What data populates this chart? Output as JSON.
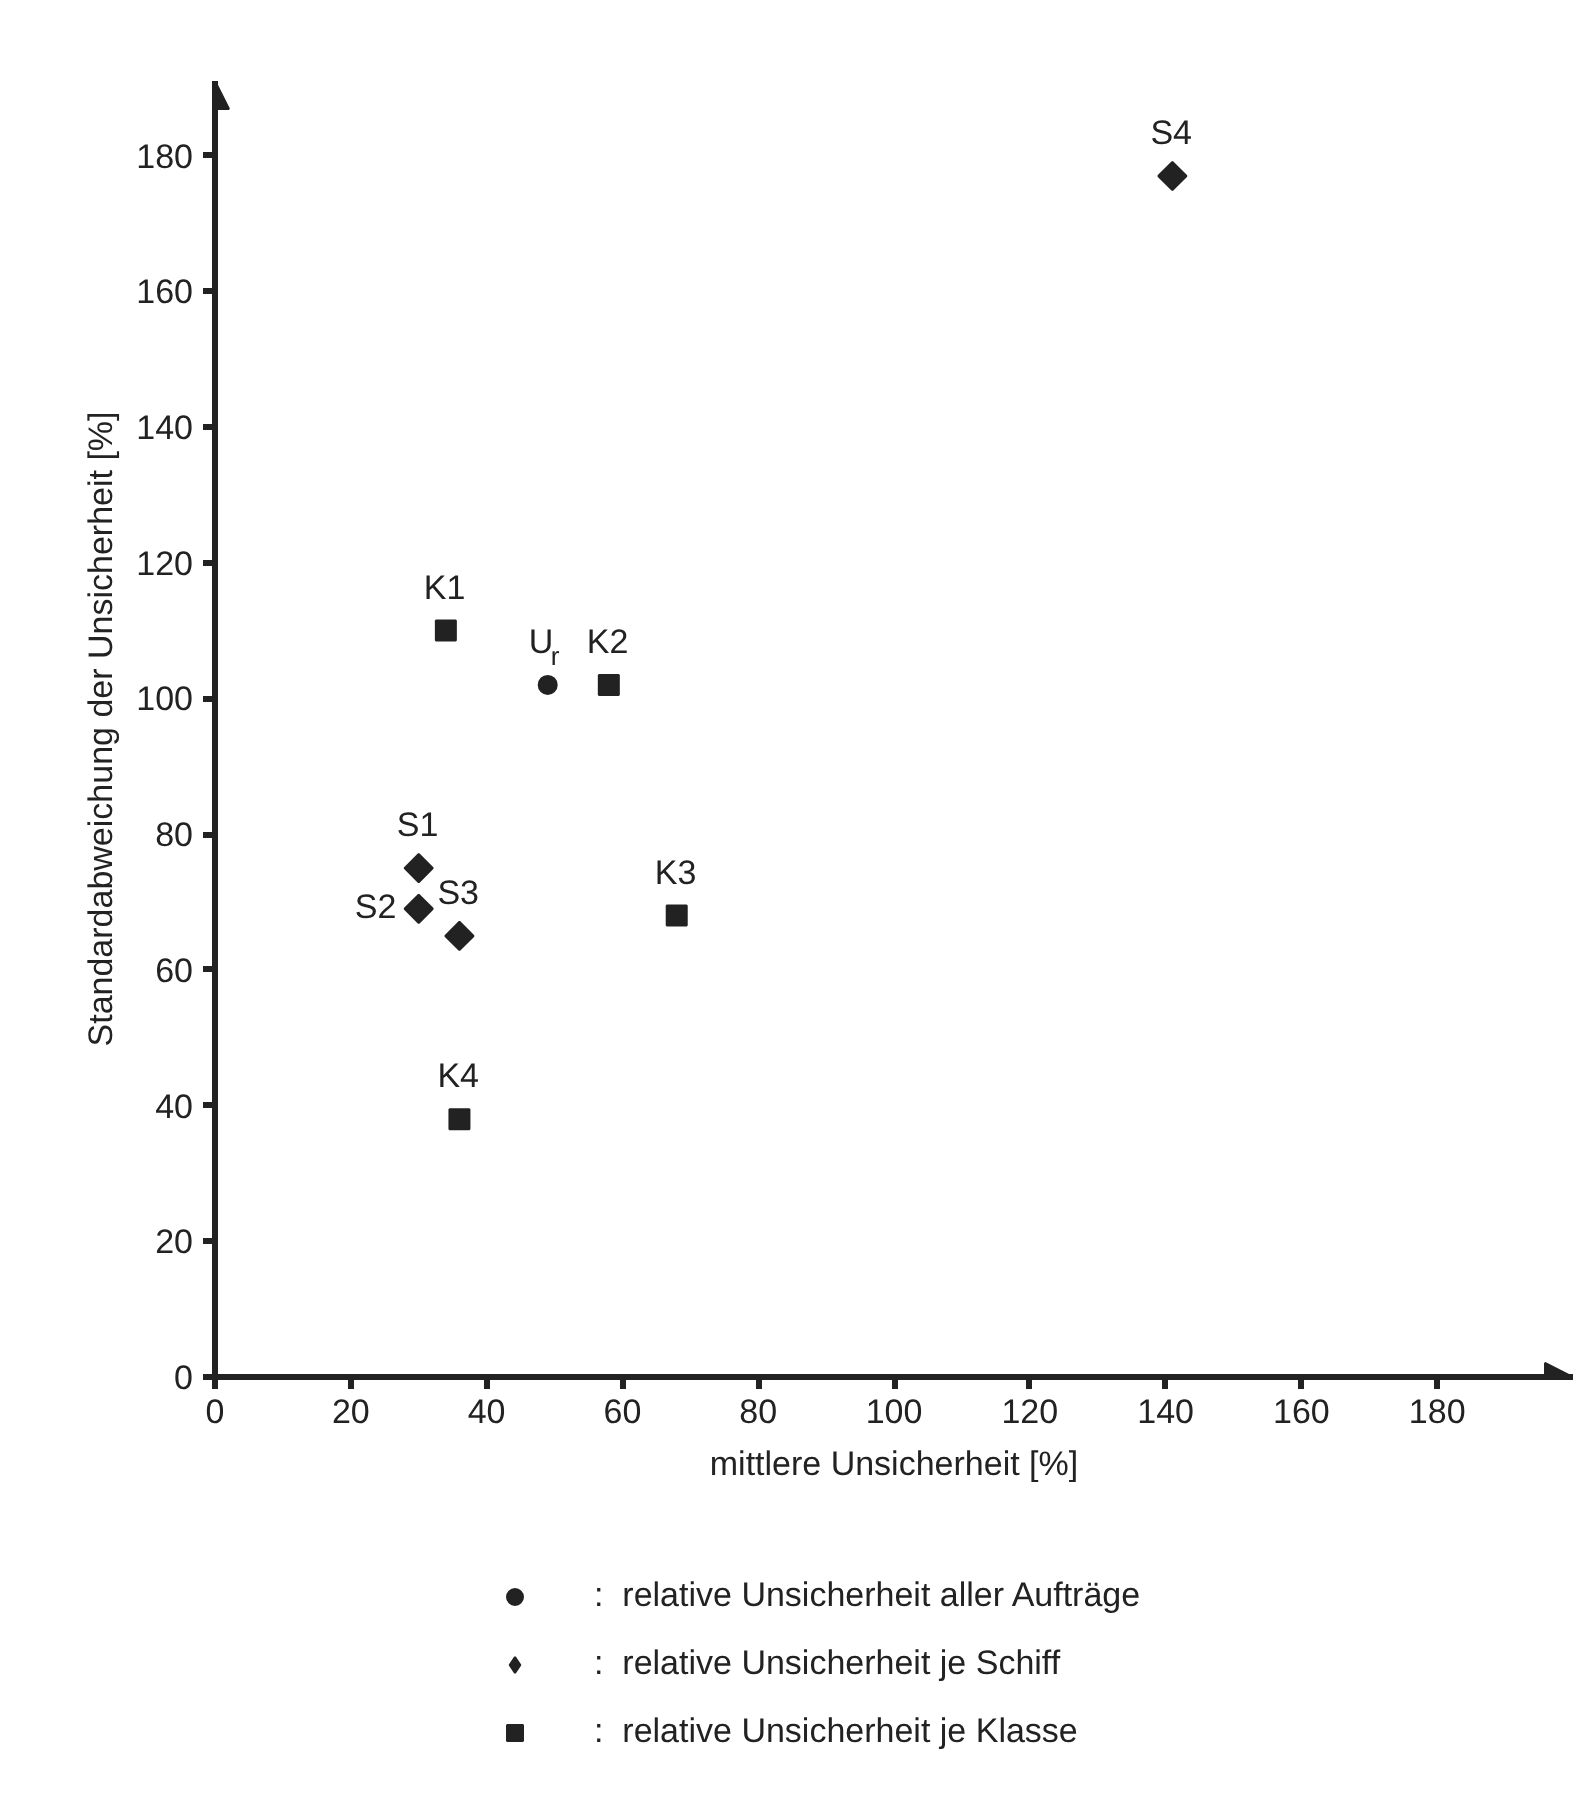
{
  "chart_data": {
    "type": "scatter",
    "xlabel": "mittlere Unsicherheit [%]",
    "ylabel": "Standardabweichung der Unsicherheit [%]",
    "xlim": [
      0,
      200
    ],
    "ylim": [
      0,
      191
    ],
    "xticks": [
      0,
      20,
      40,
      60,
      80,
      100,
      120,
      140,
      160,
      180
    ],
    "yticks": [
      0,
      20,
      40,
      60,
      80,
      100,
      120,
      140,
      160,
      180
    ],
    "grid": false,
    "legend": "bottom",
    "series": [
      {
        "name": ":  relative Unsicherheit aller Aufträge",
        "color": "#222222",
        "marker": "circle",
        "x": [
          49
        ],
        "values": [
          102
        ]
      },
      {
        "name": ":  relative Unsicherheit je Schiff",
        "color": "#222222",
        "marker": "diamond",
        "x": [
          30,
          30,
          36,
          141
        ],
        "values": [
          75,
          69,
          65,
          177
        ]
      },
      {
        "name": ":  relative Unsicherheit je Klasse",
        "color": "#222222",
        "marker": "square",
        "x": [
          34,
          58,
          68,
          36
        ],
        "values": [
          110,
          102,
          68,
          38
        ]
      }
    ],
    "annotations": [
      {
        "text": "U$_{r}$",
        "x": 49,
        "y": 102
      },
      {
        "text": "S1",
        "x": 30,
        "y": 75
      },
      {
        "text": "S2",
        "x": 30,
        "y": 69
      },
      {
        "text": "S3",
        "x": 36,
        "y": 65
      },
      {
        "text": "S4",
        "x": 141,
        "y": 177
      },
      {
        "text": "K1",
        "x": 34,
        "y": 110
      },
      {
        "text": "K2",
        "x": 58,
        "y": 102
      },
      {
        "text": "K3",
        "x": 68,
        "y": 68
      },
      {
        "text": "K4",
        "x": 36,
        "y": 38
      }
    ]
  }
}
